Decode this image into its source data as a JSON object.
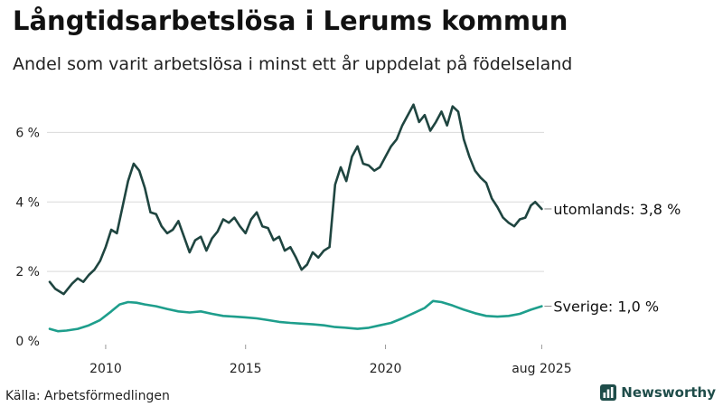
{
  "header": {
    "title": "Långtidsarbetslösa i Lerums kommun",
    "subtitle": "Andel som varit arbetslösa i minst ett år uppdelat på födelseland"
  },
  "footer": {
    "source": "Källa: Arbetsförmedlingen",
    "brand": "Newsworthy"
  },
  "colors": {
    "utomlands": "#1f4540",
    "sverige": "#1e9e8c",
    "grid": "#d9d9d9",
    "brand": "#1f4d4a"
  },
  "icons": [
    "bar-chart-logo-icon"
  ],
  "chart_data": {
    "type": "line",
    "title": "Långtidsarbetslösa i Lerums kommun",
    "subtitle": "Andel som varit arbetslösa i minst ett år uppdelat på födelseland",
    "x_range": [
      2008.0,
      2025.667
    ],
    "ylim": [
      0,
      7
    ],
    "y_ticks": [
      0,
      2,
      4,
      6
    ],
    "y_tick_labels": [
      "0 %",
      "2 %",
      "4 %",
      "6 %"
    ],
    "x_ticks": [
      2010,
      2015,
      2020,
      2025.583
    ],
    "x_tick_labels": [
      "2010",
      "2015",
      "2020",
      "aug 2025"
    ],
    "grid": "horizontal",
    "legend": "end-of-line labels",
    "series": [
      {
        "key": "utomlands",
        "end_label": "utomlands: 3,8 %",
        "points": [
          [
            2008.0,
            1.7
          ],
          [
            2008.2,
            1.5
          ],
          [
            2008.5,
            1.35
          ],
          [
            2008.8,
            1.65
          ],
          [
            2009.0,
            1.8
          ],
          [
            2009.2,
            1.7
          ],
          [
            2009.4,
            1.9
          ],
          [
            2009.6,
            2.05
          ],
          [
            2009.8,
            2.3
          ],
          [
            2010.0,
            2.7
          ],
          [
            2010.2,
            3.2
          ],
          [
            2010.4,
            3.1
          ],
          [
            2010.6,
            3.85
          ],
          [
            2010.8,
            4.6
          ],
          [
            2011.0,
            5.1
          ],
          [
            2011.2,
            4.9
          ],
          [
            2011.4,
            4.4
          ],
          [
            2011.6,
            3.7
          ],
          [
            2011.8,
            3.65
          ],
          [
            2012.0,
            3.3
          ],
          [
            2012.2,
            3.1
          ],
          [
            2012.4,
            3.2
          ],
          [
            2012.6,
            3.45
          ],
          [
            2012.8,
            3.0
          ],
          [
            2013.0,
            2.55
          ],
          [
            2013.2,
            2.9
          ],
          [
            2013.4,
            3.0
          ],
          [
            2013.6,
            2.6
          ],
          [
            2013.8,
            2.95
          ],
          [
            2014.0,
            3.15
          ],
          [
            2014.2,
            3.5
          ],
          [
            2014.4,
            3.4
          ],
          [
            2014.6,
            3.55
          ],
          [
            2014.8,
            3.3
          ],
          [
            2015.0,
            3.1
          ],
          [
            2015.2,
            3.5
          ],
          [
            2015.4,
            3.7
          ],
          [
            2015.6,
            3.3
          ],
          [
            2015.8,
            3.25
          ],
          [
            2016.0,
            2.9
          ],
          [
            2016.2,
            3.0
          ],
          [
            2016.4,
            2.6
          ],
          [
            2016.6,
            2.7
          ],
          [
            2016.8,
            2.4
          ],
          [
            2017.0,
            2.05
          ],
          [
            2017.2,
            2.2
          ],
          [
            2017.4,
            2.55
          ],
          [
            2017.6,
            2.4
          ],
          [
            2017.8,
            2.6
          ],
          [
            2018.0,
            2.7
          ],
          [
            2018.2,
            4.5
          ],
          [
            2018.4,
            5.0
          ],
          [
            2018.6,
            4.6
          ],
          [
            2018.8,
            5.3
          ],
          [
            2019.0,
            5.6
          ],
          [
            2019.2,
            5.1
          ],
          [
            2019.4,
            5.05
          ],
          [
            2019.6,
            4.9
          ],
          [
            2019.8,
            5.0
          ],
          [
            2020.0,
            5.3
          ],
          [
            2020.2,
            5.6
          ],
          [
            2020.4,
            5.8
          ],
          [
            2020.6,
            6.2
          ],
          [
            2020.8,
            6.5
          ],
          [
            2021.0,
            6.8
          ],
          [
            2021.2,
            6.3
          ],
          [
            2021.4,
            6.5
          ],
          [
            2021.6,
            6.05
          ],
          [
            2021.8,
            6.3
          ],
          [
            2022.0,
            6.6
          ],
          [
            2022.2,
            6.2
          ],
          [
            2022.4,
            6.75
          ],
          [
            2022.6,
            6.6
          ],
          [
            2022.8,
            5.8
          ],
          [
            2023.0,
            5.3
          ],
          [
            2023.2,
            4.9
          ],
          [
            2023.4,
            4.7
          ],
          [
            2023.6,
            4.55
          ],
          [
            2023.8,
            4.1
          ],
          [
            2024.0,
            3.85
          ],
          [
            2024.2,
            3.55
          ],
          [
            2024.4,
            3.4
          ],
          [
            2024.6,
            3.3
          ],
          [
            2024.8,
            3.5
          ],
          [
            2025.0,
            3.55
          ],
          [
            2025.2,
            3.9
          ],
          [
            2025.35,
            4.0
          ],
          [
            2025.583,
            3.8
          ]
        ]
      },
      {
        "key": "sverige",
        "end_label": "Sverige: 1,0 %",
        "points": [
          [
            2008.0,
            0.35
          ],
          [
            2008.3,
            0.28
          ],
          [
            2008.6,
            0.3
          ],
          [
            2009.0,
            0.35
          ],
          [
            2009.4,
            0.45
          ],
          [
            2009.8,
            0.6
          ],
          [
            2010.2,
            0.85
          ],
          [
            2010.5,
            1.05
          ],
          [
            2010.8,
            1.12
          ],
          [
            2011.1,
            1.1
          ],
          [
            2011.4,
            1.05
          ],
          [
            2011.8,
            1.0
          ],
          [
            2012.2,
            0.92
          ],
          [
            2012.6,
            0.85
          ],
          [
            2013.0,
            0.82
          ],
          [
            2013.4,
            0.85
          ],
          [
            2013.8,
            0.78
          ],
          [
            2014.2,
            0.72
          ],
          [
            2014.6,
            0.7
          ],
          [
            2015.0,
            0.68
          ],
          [
            2015.4,
            0.65
          ],
          [
            2015.8,
            0.6
          ],
          [
            2016.2,
            0.55
          ],
          [
            2016.6,
            0.52
          ],
          [
            2017.0,
            0.5
          ],
          [
            2017.4,
            0.48
          ],
          [
            2017.8,
            0.45
          ],
          [
            2018.2,
            0.4
          ],
          [
            2018.6,
            0.38
          ],
          [
            2019.0,
            0.35
          ],
          [
            2019.4,
            0.38
          ],
          [
            2019.8,
            0.45
          ],
          [
            2020.2,
            0.52
          ],
          [
            2020.6,
            0.65
          ],
          [
            2021.0,
            0.8
          ],
          [
            2021.4,
            0.95
          ],
          [
            2021.7,
            1.15
          ],
          [
            2022.0,
            1.12
          ],
          [
            2022.4,
            1.02
          ],
          [
            2022.8,
            0.9
          ],
          [
            2023.2,
            0.8
          ],
          [
            2023.6,
            0.72
          ],
          [
            2024.0,
            0.7
          ],
          [
            2024.4,
            0.72
          ],
          [
            2024.8,
            0.78
          ],
          [
            2025.2,
            0.9
          ],
          [
            2025.583,
            1.0
          ]
        ]
      }
    ]
  }
}
